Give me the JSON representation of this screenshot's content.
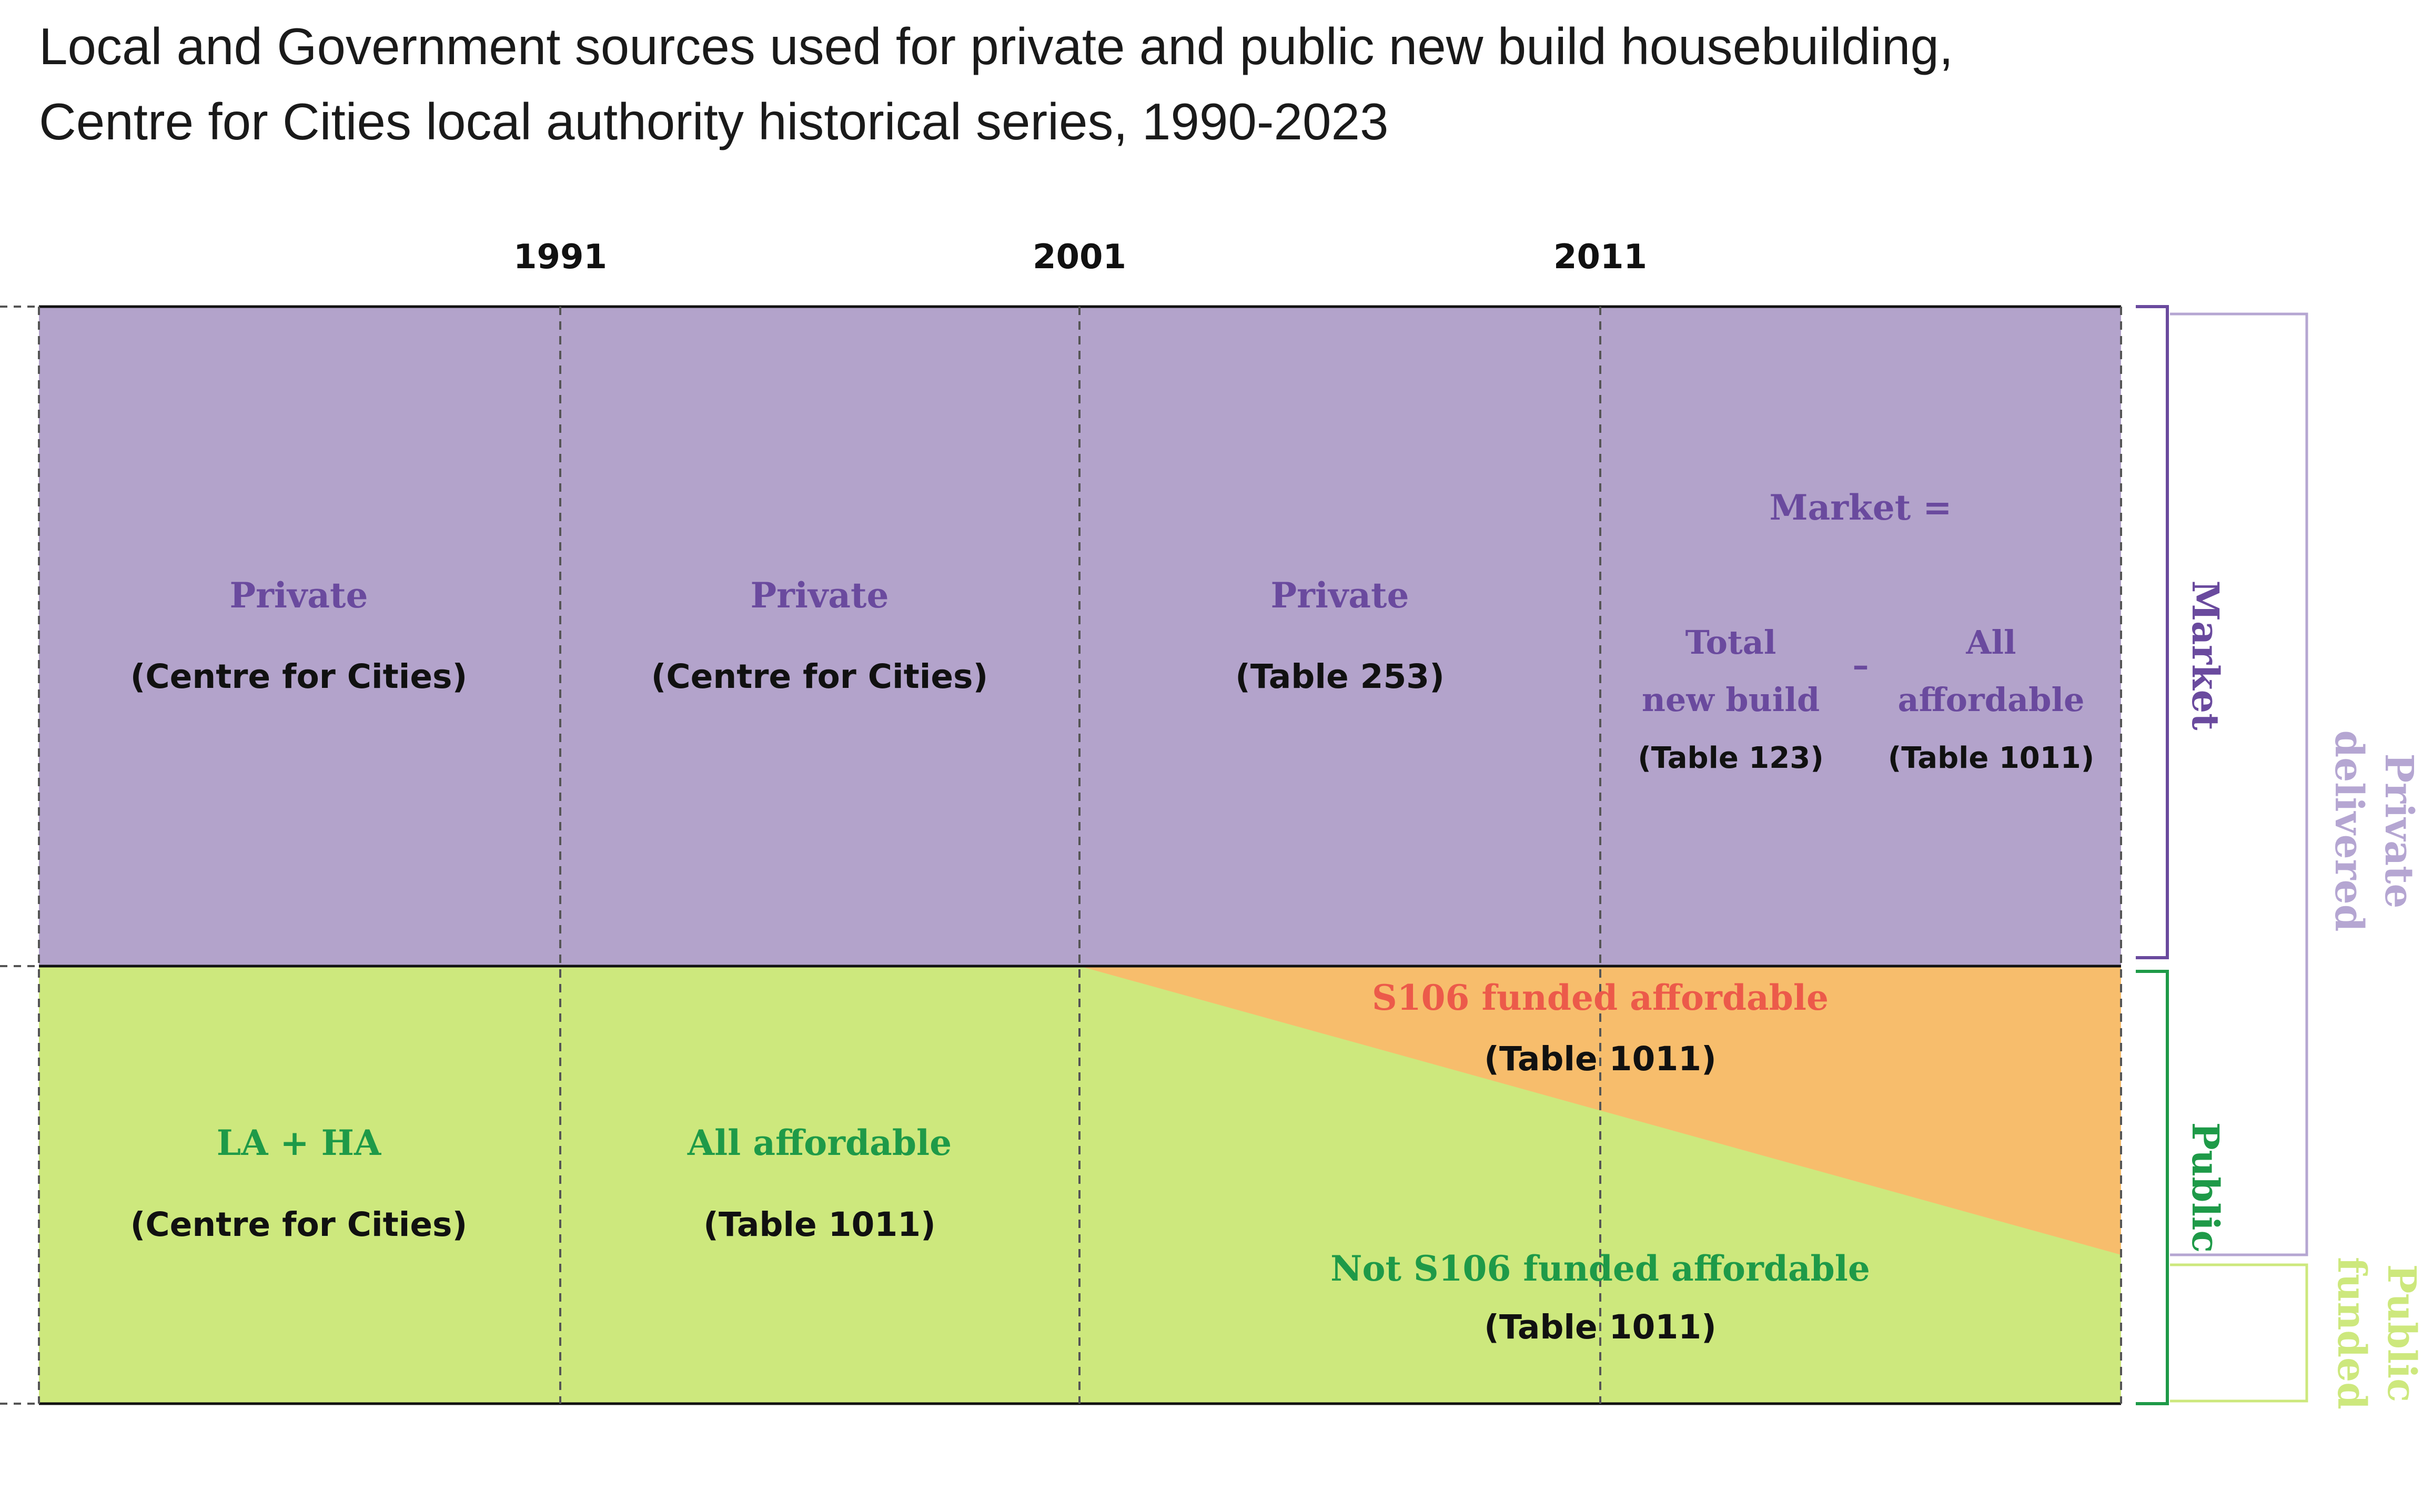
{
  "title_lines": [
    "Local and Government sources used for private and public new build housebuilding,",
    "Centre for Cities local authority historical series, 1990-2023"
  ],
  "years": [
    "1991",
    "2001",
    "2011"
  ],
  "colors": {
    "private_fill": "#b3a3cb",
    "public_fill": "#cde87d",
    "s106_fill": "#f7bd6c",
    "private_text": "#6a4a9e",
    "public_text": "#1e9a48",
    "s106_text": "#ec5a4a",
    "light_purple": "#b5a6d2",
    "light_green": "#cde87d"
  },
  "private_row": {
    "col1": {
      "label": "Private",
      "source": "(Centre for Cities)"
    },
    "col2": {
      "label": "Private",
      "source": "(Centre for Cities)"
    },
    "col3": {
      "label": "Private",
      "source": "(Table 253)"
    },
    "col4": {
      "heading": "Market =",
      "left_line1": "Total",
      "left_line2": "new build",
      "left_source": "(Table 123)",
      "operator": "–",
      "right_line1": "All",
      "right_line2": "affordable",
      "right_source": "(Table 1011)"
    }
  },
  "public_row": {
    "col1": {
      "label": "LA + HA",
      "source": "(Centre for Cities)"
    },
    "col2": {
      "label": "All affordable",
      "source": "(Table 1011)"
    },
    "s106": {
      "label": "S106 funded affordable",
      "source": "(Table 1011)"
    },
    "not_s106": {
      "label": "Not S106 funded affordable",
      "source": "(Table 1011)"
    }
  },
  "brackets": {
    "market": "Market",
    "public": "Public",
    "private_delivered_line1": "Private",
    "private_delivered_line2": "delivered",
    "public_funded_line1": "Public",
    "public_funded_line2": "funded"
  }
}
